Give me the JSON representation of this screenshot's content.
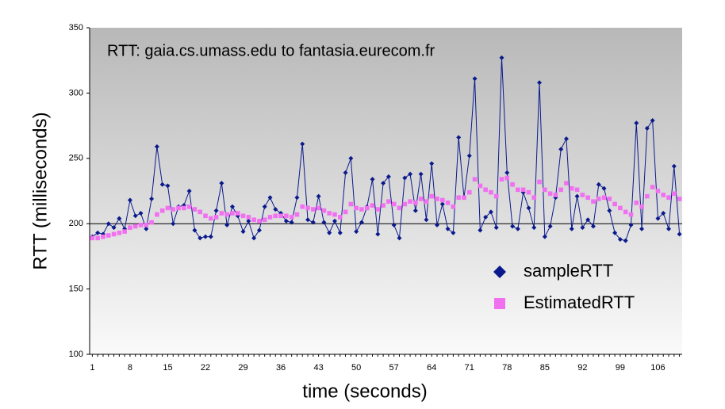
{
  "chart_data": {
    "type": "line",
    "title": "RTT: gaia.cs.umass.edu to fantasia.eurecom.fr",
    "x_label": "time (seconds)",
    "y_label": "RTT (milliseconds)",
    "categories": [
      "1",
      null,
      null,
      null,
      null,
      null,
      null,
      "8",
      null,
      null,
      null,
      null,
      null,
      null,
      "15",
      null,
      null,
      null,
      null,
      null,
      null,
      "22",
      null,
      null,
      null,
      null,
      null,
      null,
      "29",
      null,
      null,
      null,
      null,
      null,
      null,
      "36",
      null,
      null,
      null,
      null,
      null,
      null,
      "43",
      null,
      null,
      null,
      null,
      null,
      null,
      "50",
      null,
      null,
      null,
      null,
      null,
      null,
      "57",
      null,
      null,
      null,
      null,
      null,
      null,
      "64",
      null,
      null,
      null,
      null,
      null,
      null,
      "71",
      null,
      null,
      null,
      null,
      null,
      null,
      "78",
      null,
      null,
      null,
      null,
      null,
      null,
      "85",
      null,
      null,
      null,
      null,
      null,
      null,
      "92",
      null,
      null,
      null,
      null,
      null,
      null,
      "99",
      null,
      null,
      null,
      null,
      null,
      null,
      "106",
      null,
      null,
      null,
      null
    ],
    "series": [
      {
        "name": "sampleRTT",
        "color": "#0a1a8c",
        "marker": "diamond",
        "values": [
          190,
          193,
          192,
          200,
          197,
          204,
          196,
          218,
          206,
          208,
          196,
          219,
          259,
          230,
          229,
          200,
          213,
          214,
          225,
          195,
          189,
          190,
          190,
          210,
          231,
          199,
          213,
          206,
          194,
          202,
          189,
          195,
          213,
          220,
          211,
          208,
          202,
          201,
          220,
          261,
          203,
          201,
          221,
          201,
          193,
          202,
          193,
          239,
          250,
          194,
          201,
          213,
          234,
          192,
          231,
          236,
          199,
          189,
          235,
          238,
          210,
          238,
          203,
          246,
          199,
          215,
          196,
          193,
          266,
          220,
          252,
          311,
          195,
          205,
          209,
          197,
          327,
          239,
          198,
          196,
          224,
          212,
          197,
          308,
          190,
          198,
          220,
          257,
          265,
          196,
          221,
          197,
          203,
          198,
          230,
          227,
          210,
          193,
          188,
          187,
          199,
          277,
          196,
          273,
          279,
          204,
          208,
          196,
          244,
          192
        ]
      },
      {
        "name": "EstimatedRTT",
        "color": "#f070f0",
        "marker": "square",
        "values": [
          189,
          189,
          190,
          191,
          192,
          193,
          194,
          197,
          198,
          199,
          199,
          201,
          207,
          210,
          212,
          211,
          212,
          212,
          213,
          211,
          209,
          206,
          204,
          205,
          208,
          207,
          208,
          208,
          206,
          205,
          203,
          202,
          203,
          205,
          206,
          206,
          206,
          205,
          207,
          213,
          212,
          211,
          212,
          210,
          208,
          207,
          205,
          209,
          215,
          212,
          211,
          212,
          214,
          211,
          214,
          217,
          215,
          212,
          215,
          217,
          216,
          219,
          217,
          221,
          219,
          218,
          216,
          213,
          220,
          220,
          224,
          234,
          229,
          226,
          224,
          221,
          234,
          235,
          230,
          226,
          226,
          224,
          220,
          232,
          226,
          223,
          222,
          226,
          231,
          227,
          226,
          222,
          220,
          217,
          219,
          220,
          219,
          215,
          212,
          209,
          207,
          216,
          213,
          221,
          228,
          225,
          222,
          220,
          223,
          219
        ]
      }
    ],
    "ylim": [
      100,
      350
    ],
    "yticks": [
      100,
      150,
      200,
      250,
      300,
      350
    ],
    "reference_line": 200,
    "legend": "lower right"
  }
}
